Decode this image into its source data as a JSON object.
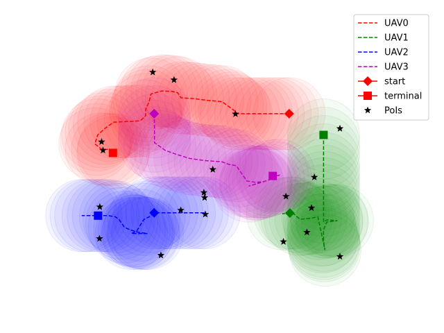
{
  "chart_data": {
    "type": "scatter",
    "title": "",
    "xlabel": "",
    "ylabel": "",
    "xlim": [
      0,
      10
    ],
    "ylim": [
      0,
      10
    ],
    "grid": false,
    "axes_visible": false,
    "legend_placement": "top-right",
    "legend": [
      {
        "label": "UAV0",
        "style": "dashed",
        "color": "#ff0000"
      },
      {
        "label": "UAV1",
        "style": "dashed",
        "color": "#008000"
      },
      {
        "label": "UAV2",
        "style": "dashed",
        "color": "#0000ff"
      },
      {
        "label": "UAV3",
        "style": "dashed",
        "color": "#bf00bf"
      },
      {
        "label": "start",
        "style": "diamond",
        "color": "#ff0000"
      },
      {
        "label": "terminal",
        "style": "square",
        "color": "#ff0000"
      },
      {
        "label": "PoIs",
        "style": "star",
        "color": "#000000"
      }
    ],
    "series": [
      {
        "name": "UAV0",
        "color": "#ff0000",
        "start": [
          6.89,
          7.13
        ],
        "terminal": [
          1.93,
          5.6
        ],
        "path": [
          [
            6.89,
            7.13
          ],
          [
            6.3,
            7.13
          ],
          [
            5.8,
            7.13
          ],
          [
            5.4,
            7.13
          ],
          [
            5.35,
            7.25
          ],
          [
            5.15,
            7.45
          ],
          [
            5.0,
            7.6
          ],
          [
            4.6,
            7.65
          ],
          [
            4.2,
            7.72
          ],
          [
            3.85,
            7.75
          ],
          [
            3.75,
            7.95
          ],
          [
            3.6,
            8.0
          ],
          [
            3.3,
            8.02
          ],
          [
            3.0,
            7.9
          ],
          [
            2.95,
            7.6
          ],
          [
            2.85,
            7.3
          ],
          [
            2.85,
            7.05
          ],
          [
            2.7,
            6.85
          ],
          [
            2.3,
            6.82
          ],
          [
            1.95,
            6.8
          ],
          [
            1.7,
            6.55
          ],
          [
            1.5,
            6.3
          ],
          [
            1.42,
            5.95
          ],
          [
            1.6,
            5.75
          ],
          [
            1.95,
            5.72
          ],
          [
            1.93,
            5.6
          ]
        ]
      },
      {
        "name": "UAV1",
        "color": "#008000",
        "start": [
          6.91,
          3.25
        ],
        "terminal": [
          7.86,
          6.3
        ],
        "path": [
          [
            7.86,
            6.3
          ],
          [
            7.86,
            5.0
          ],
          [
            7.86,
            4.0
          ],
          [
            7.86,
            3.2
          ],
          [
            7.86,
            2.9
          ],
          [
            7.95,
            2.98
          ],
          [
            8.25,
            2.95
          ],
          [
            7.95,
            2.9
          ],
          [
            7.86,
            2.6
          ],
          [
            7.86,
            2.15
          ],
          [
            7.9,
            1.8
          ],
          [
            7.7,
            3.1
          ],
          [
            7.5,
            3.05
          ],
          [
            7.2,
            3.0
          ],
          [
            7.0,
            3.25
          ],
          [
            6.91,
            3.25
          ],
          [
            6.7,
            3.22
          ]
        ]
      },
      {
        "name": "UAV2",
        "color": "#0000ff",
        "start": [
          3.09,
          3.26
        ],
        "terminal": [
          1.51,
          3.15
        ],
        "path": [
          [
            4.5,
            3.26
          ],
          [
            4.0,
            3.26
          ],
          [
            3.6,
            3.26
          ],
          [
            3.3,
            3.26
          ],
          [
            3.09,
            3.26
          ],
          [
            2.95,
            3.1
          ],
          [
            2.8,
            3.0
          ],
          [
            2.6,
            2.55
          ],
          [
            2.45,
            2.45
          ],
          [
            2.8,
            2.45
          ],
          [
            2.9,
            2.45
          ],
          [
            2.65,
            2.5
          ],
          [
            2.4,
            2.6
          ],
          [
            2.25,
            2.7
          ],
          [
            2.1,
            3.0
          ],
          [
            2.0,
            3.1
          ],
          [
            1.8,
            3.15
          ],
          [
            1.51,
            3.15
          ],
          [
            1.3,
            3.15
          ],
          [
            1.05,
            3.15
          ]
        ]
      },
      {
        "name": "UAV3",
        "color": "#bf00bf",
        "start": [
          3.09,
          7.13
        ],
        "terminal": [
          6.43,
          4.7
        ],
        "path": [
          [
            3.09,
            7.13
          ],
          [
            3.1,
            6.5
          ],
          [
            3.1,
            6.0
          ],
          [
            3.4,
            5.7
          ],
          [
            3.7,
            5.55
          ],
          [
            4.1,
            5.38
          ],
          [
            4.5,
            5.3
          ],
          [
            5.0,
            5.25
          ],
          [
            5.2,
            5.15
          ],
          [
            5.4,
            5.1
          ],
          [
            5.5,
            4.9
          ],
          [
            5.7,
            4.5
          ],
          [
            5.95,
            4.45
          ],
          [
            6.2,
            4.48
          ],
          [
            5.75,
            4.3
          ],
          [
            6.5,
            4.62
          ],
          [
            6.6,
            4.72
          ],
          [
            6.43,
            4.7
          ]
        ]
      }
    ],
    "pois": [
      [
        3.05,
        8.75
      ],
      [
        3.65,
        8.45
      ],
      [
        5.38,
        7.12
      ],
      [
        8.32,
        6.55
      ],
      [
        1.61,
        6.03
      ],
      [
        1.65,
        5.7
      ],
      [
        4.74,
        4.95
      ],
      [
        7.6,
        4.65
      ],
      [
        4.49,
        4.05
      ],
      [
        4.51,
        3.85
      ],
      [
        6.8,
        3.9
      ],
      [
        1.56,
        3.49
      ],
      [
        3.84,
        3.36
      ],
      [
        4.53,
        3.2
      ],
      [
        7.52,
        3.45
      ],
      [
        1.55,
        2.25
      ],
      [
        7.39,
        2.5
      ],
      [
        6.73,
        2.13
      ],
      [
        3.28,
        1.6
      ],
      [
        8.32,
        1.55
      ]
    ]
  }
}
